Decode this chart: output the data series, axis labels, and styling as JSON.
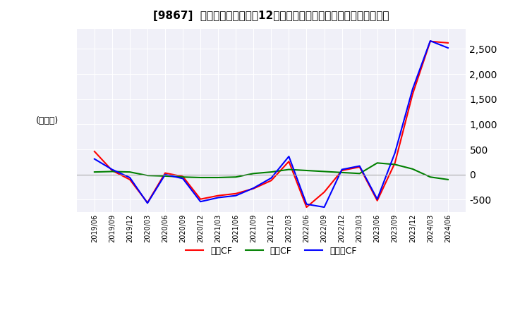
{
  "title": "[9867]  キャッシュフローの12か月移動合計の対前年同期増減額の推移",
  "ylabel": "(百万円)",
  "ylim": [
    -750,
    2900
  ],
  "yticks": [
    -500,
    0,
    500,
    1000,
    1500,
    2000,
    2500
  ],
  "background_color": "#ffffff",
  "plot_bg_color": "#f0f0f8",
  "grid_color": "#ffffff",
  "dates": [
    "2019/06",
    "2019/09",
    "2019/12",
    "2020/03",
    "2020/06",
    "2020/09",
    "2020/12",
    "2021/03",
    "2021/06",
    "2021/09",
    "2021/12",
    "2022/03",
    "2022/06",
    "2022/09",
    "2022/12",
    "2023/03",
    "2023/06",
    "2023/09",
    "2023/12",
    "2024/03",
    "2024/06"
  ],
  "eigyo_cf": [
    460,
    80,
    -100,
    -560,
    30,
    -40,
    -490,
    -420,
    -380,
    -280,
    -120,
    260,
    -650,
    -350,
    80,
    150,
    -520,
    230,
    1600,
    2650,
    2620
  ],
  "toshi_cf": [
    50,
    60,
    50,
    -20,
    -30,
    -50,
    -60,
    -60,
    -50,
    20,
    50,
    100,
    80,
    60,
    40,
    20,
    230,
    200,
    110,
    -50,
    -100
  ],
  "free_cf": [
    310,
    100,
    -60,
    -570,
    0,
    -80,
    -540,
    -460,
    -420,
    -270,
    -70,
    360,
    -590,
    -650,
    100,
    170,
    -490,
    430,
    1700,
    2660,
    2520
  ],
  "eigyo_color": "#ff0000",
  "toshi_color": "#008000",
  "free_color": "#0000ff",
  "legend_labels": [
    "営業CF",
    "投資CF",
    "フリーCF"
  ]
}
